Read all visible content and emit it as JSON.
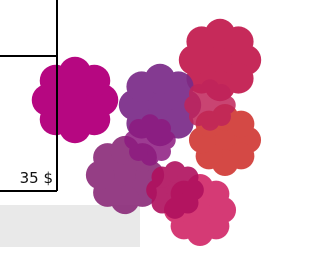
{
  "price": "35 $"
}
